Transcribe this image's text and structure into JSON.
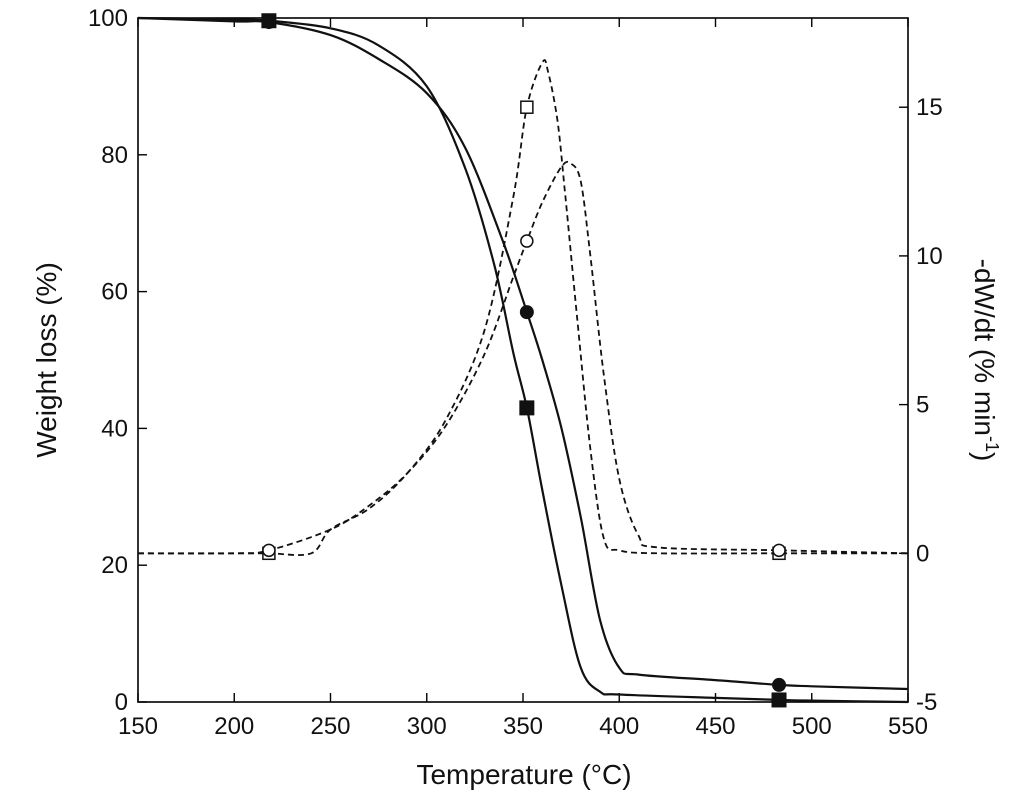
{
  "chart_data": {
    "type": "line",
    "title": "",
    "xlabel": "Temperature (°C)",
    "ylabel": "Weight loss (%)",
    "y2label_main": "-dW/dt (% min",
    "y2label_sup": "-1",
    "y2label_close": ")",
    "xlim": [
      150,
      550
    ],
    "ylim": [
      0,
      100
    ],
    "y2lim": [
      -5,
      18
    ],
    "x_ticks": [
      150,
      200,
      250,
      300,
      350,
      400,
      450,
      500,
      550
    ],
    "y_ticks": [
      0,
      20,
      40,
      60,
      80,
      100
    ],
    "y2_ticks": [
      -5,
      0,
      5,
      10,
      15
    ],
    "grid": false,
    "series": [
      {
        "axis": "left",
        "style": "solid",
        "marker": "filled-square",
        "x": [
          150,
          200,
          218,
          250,
          275,
          300,
          320,
          335,
          345,
          352,
          360,
          370,
          380,
          390,
          400,
          450,
          483,
          500,
          550
        ],
        "y": [
          100,
          99.8,
          99.6,
          98.5,
          96,
          90,
          78,
          64,
          51,
          43,
          31,
          17,
          5,
          1.5,
          1.1,
          0.6,
          0.3,
          0.2,
          0
        ],
        "marker_x": [
          218,
          352,
          483
        ],
        "marker_y": [
          99.6,
          43,
          0.3
        ]
      },
      {
        "axis": "left",
        "style": "solid",
        "marker": "filled-circle",
        "x": [
          150,
          200,
          218,
          250,
          275,
          300,
          320,
          340,
          352,
          360,
          370,
          380,
          390,
          400,
          410,
          450,
          483,
          500,
          550
        ],
        "y": [
          100,
          99.5,
          99.4,
          97.5,
          94,
          89,
          81,
          67,
          57,
          50,
          40,
          27,
          12,
          5,
          4,
          3.2,
          2.5,
          2.3,
          1.9
        ],
        "marker_x": [
          218,
          352,
          483
        ],
        "marker_y": [
          99.4,
          57,
          2.5
        ]
      },
      {
        "axis": "right",
        "style": "dashed",
        "marker": "open-square",
        "x": [
          150,
          200,
          218,
          240,
          250,
          270,
          290,
          310,
          330,
          345,
          352,
          360,
          363,
          368,
          372,
          378,
          385,
          392,
          400,
          420,
          483,
          550
        ],
        "y": [
          0,
          0,
          0,
          0,
          0.8,
          1.5,
          2.7,
          4.5,
          7.5,
          12,
          15,
          16.5,
          16.2,
          14.5,
          12,
          8,
          3.5,
          0.5,
          0.1,
          0,
          0,
          0
        ],
        "marker_x": [
          218,
          352,
          483
        ],
        "marker_y": [
          0,
          15,
          0
        ]
      },
      {
        "axis": "right",
        "style": "dashed",
        "marker": "open-circle",
        "x": [
          150,
          200,
          218,
          250,
          270,
          290,
          310,
          330,
          345,
          352,
          360,
          370,
          375,
          380,
          385,
          392,
          400,
          410,
          420,
          483,
          550
        ],
        "y": [
          0,
          0,
          0.1,
          0.8,
          1.6,
          2.7,
          4.3,
          6.7,
          9.3,
          10.5,
          11.8,
          13,
          13.1,
          12.5,
          10,
          6,
          2.5,
          0.6,
          0.2,
          0.1,
          0
        ],
        "marker_x": [
          218,
          352,
          483
        ],
        "marker_y": [
          0.1,
          10.5,
          0.1
        ]
      }
    ]
  }
}
